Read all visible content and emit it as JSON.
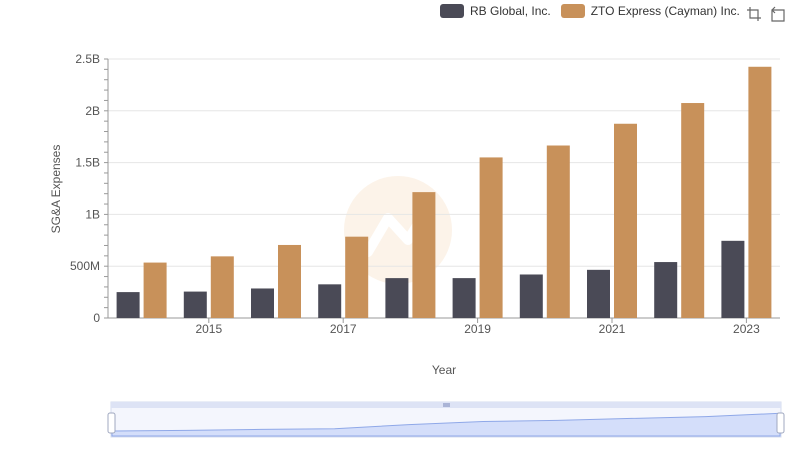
{
  "legend": {
    "series_a": "RB Global, Inc.",
    "series_b": "ZTO Express (Cayman) Inc."
  },
  "toolbar": {
    "icons": [
      "zoom-select-icon",
      "zoom-reset-icon"
    ]
  },
  "chart_data": {
    "type": "bar",
    "title": "",
    "xlabel": "Year",
    "ylabel": "SG&A Expenses",
    "categories": [
      "2014",
      "2015",
      "2016",
      "2017",
      "2018",
      "2019",
      "2020",
      "2021",
      "2022",
      "2023"
    ],
    "x_tick_labels": [
      "2015",
      "2017",
      "2019",
      "2021",
      "2023"
    ],
    "y_tick_labels": [
      "0",
      "500M",
      "1B",
      "1.5B",
      "2B",
      "2.5B"
    ],
    "ylim": [
      0,
      2500000000
    ],
    "series": [
      {
        "name": "RB Global, Inc.",
        "color": "#4a4a56",
        "values": [
          250000000,
          255000000,
          285000000,
          325000000,
          385000000,
          385000000,
          420000000,
          465000000,
          540000000,
          745000000
        ]
      },
      {
        "name": "ZTO Express (Cayman) Inc.",
        "color": "#c8915a",
        "values": [
          535000000,
          595000000,
          705000000,
          785000000,
          1215000000,
          1550000000,
          1665000000,
          1875000000,
          2075000000,
          2425000000
        ]
      }
    ],
    "grid": true,
    "legend_position": "top-right"
  }
}
